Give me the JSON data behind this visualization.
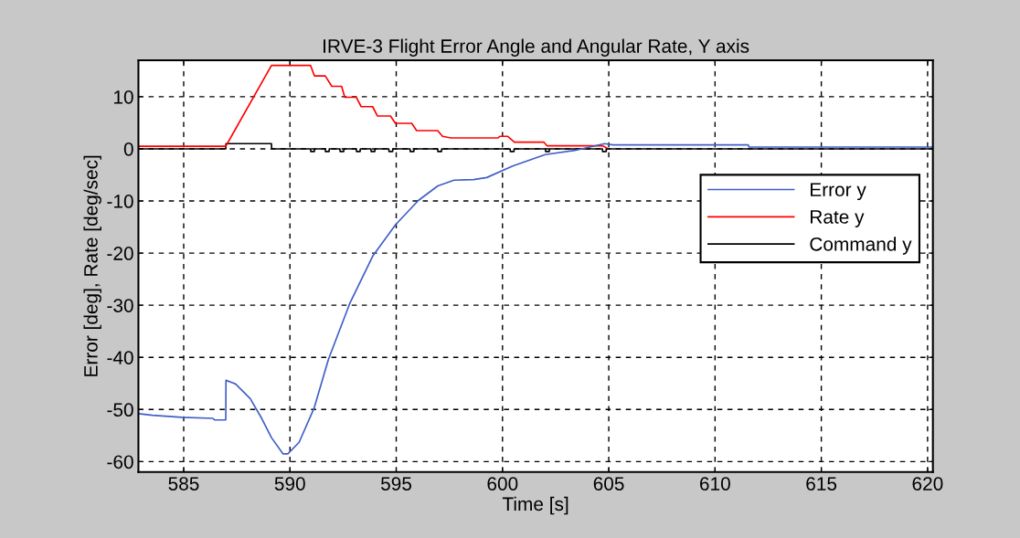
{
  "chart_data": {
    "type": "line",
    "title": "IRVE-3 Flight Error Angle and Angular Rate, Y axis",
    "xlabel": "Time [s]",
    "ylabel": "Error [deg], Rate [deg/sec]",
    "xlim": [
      582.87,
      620.25
    ],
    "ylim": [
      -62,
      17
    ],
    "xticks": [
      585,
      590,
      595,
      600,
      605,
      610,
      615,
      620
    ],
    "yticks": [
      -60,
      -50,
      -40,
      -30,
      -20,
      -10,
      0,
      10
    ],
    "grid": true,
    "legend": "center right",
    "line_style": "solid",
    "marker": "none",
    "series": [
      {
        "name": "Error y",
        "color": "#3f5fc8",
        "x": [
          582.87,
          583.53,
          584.91,
          586.37,
          586.45,
          586.98,
          586.99,
          587.44,
          588.13,
          588.67,
          589.13,
          589.67,
          589.9,
          590.43,
          591.13,
          591.81,
          592.81,
          593.89,
          594.96,
          596.04,
          596.96,
          597.72,
          598.64,
          599.26,
          600.48,
          602.01,
          603.4,
          604.8,
          605.2,
          611.56,
          611.6,
          620.25
        ],
        "values": [
          -50.8,
          -51.1,
          -51.5,
          -51.7,
          -52.0,
          -52.0,
          -44.4,
          -45.1,
          -47.9,
          -51.7,
          -55.4,
          -58.5,
          -58.5,
          -56.3,
          -49.8,
          -40.4,
          -29.7,
          -20.6,
          -14.6,
          -9.9,
          -7.1,
          -6.0,
          -5.9,
          -5.5,
          -3.3,
          -1.1,
          -0.3,
          1.0,
          0.76,
          0.76,
          0.35,
          0.35
        ]
      },
      {
        "name": "Rate y",
        "color": "#ff0000",
        "x": [
          582.87,
          586.98,
          589.13,
          590.97,
          591.15,
          591.66,
          591.97,
          592.43,
          592.58,
          593.12,
          593.35,
          593.89,
          594.12,
          594.73,
          594.96,
          595.73,
          595.96,
          596.95,
          597.18,
          597.57,
          599.79,
          599.87,
          600.25,
          600.56,
          601.94,
          602.09,
          604.7,
          604.9
        ],
        "values": [
          0.5,
          0.5,
          16,
          16,
          14,
          14,
          12,
          12,
          9.9,
          9.9,
          8.1,
          8.1,
          6.3,
          6.3,
          4.9,
          4.9,
          3.5,
          3.5,
          2.4,
          2.1,
          2.1,
          2.4,
          2.4,
          1.3,
          1.3,
          0.6,
          0.6,
          0.2
        ]
      },
      {
        "name": "Command y",
        "color": "#000000",
        "x": [
          582.87,
          586.98,
          586.99,
          589.13,
          589.14,
          590.97,
          590.98,
          591.15,
          591.16,
          591.66,
          591.67,
          591.84,
          591.85,
          592.35,
          592.36,
          592.53,
          592.54,
          593.12,
          593.13,
          593.3,
          593.31,
          593.81,
          593.82,
          593.99,
          594.0,
          594.65,
          594.66,
          594.83,
          594.84,
          595.65,
          595.66,
          595.83,
          595.84,
          596.95,
          596.96,
          597.13,
          597.14,
          600.36,
          600.37,
          600.54,
          600.55,
          602.02,
          602.03,
          602.2,
          602.21,
          604.7,
          604.71,
          604.88,
          604.89,
          620.25
        ],
        "values": [
          0,
          0,
          1,
          1,
          0,
          0,
          -0.5,
          -0.5,
          0,
          0,
          -0.5,
          -0.5,
          0,
          0,
          -0.5,
          -0.5,
          0,
          0,
          -0.5,
          -0.5,
          0,
          0,
          -0.5,
          -0.5,
          0,
          0,
          -0.5,
          -0.5,
          0,
          0,
          -0.5,
          -0.5,
          0,
          0,
          -0.5,
          -0.5,
          0,
          0,
          -0.5,
          -0.5,
          0,
          0,
          -0.5,
          -0.5,
          0,
          0,
          -0.5,
          -0.5,
          0,
          0
        ]
      }
    ]
  }
}
